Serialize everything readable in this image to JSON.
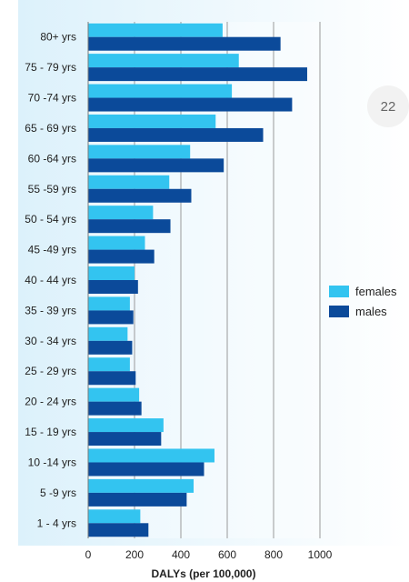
{
  "page_number": "22",
  "chart_data": {
    "type": "bar",
    "orientation": "horizontal",
    "title": "",
    "xlabel": "DALYs (per 100,000)",
    "ylabel": "",
    "xlim": [
      0,
      1000
    ],
    "xticks": [
      0,
      200,
      400,
      600,
      800,
      1000
    ],
    "grid": true,
    "legend_position": "right",
    "categories": [
      "80+ yrs",
      "75 - 79 yrs",
      "70 -74 yrs",
      "65 - 69 yrs",
      "60 -64 yrs",
      "55 -59 yrs",
      "50 - 54 yrs",
      "45 -49 yrs",
      "40 - 44 yrs",
      "35 - 39 yrs",
      "30 - 34 yrs",
      "25 - 29 yrs",
      "20 - 24 yrs",
      "15 - 19 yrs",
      "10 -14 yrs",
      "5 -9 yrs",
      "1 - 4 yrs"
    ],
    "series": [
      {
        "name": "females",
        "color": "#33c4f0",
        "values": [
          580,
          650,
          620,
          550,
          440,
          350,
          280,
          245,
          200,
          180,
          170,
          180,
          220,
          325,
          545,
          455,
          225
        ]
      },
      {
        "name": "males",
        "color": "#0b4a9a",
        "values": [
          830,
          945,
          880,
          755,
          585,
          445,
          355,
          285,
          215,
          195,
          190,
          205,
          230,
          315,
          500,
          425,
          260
        ]
      }
    ]
  }
}
